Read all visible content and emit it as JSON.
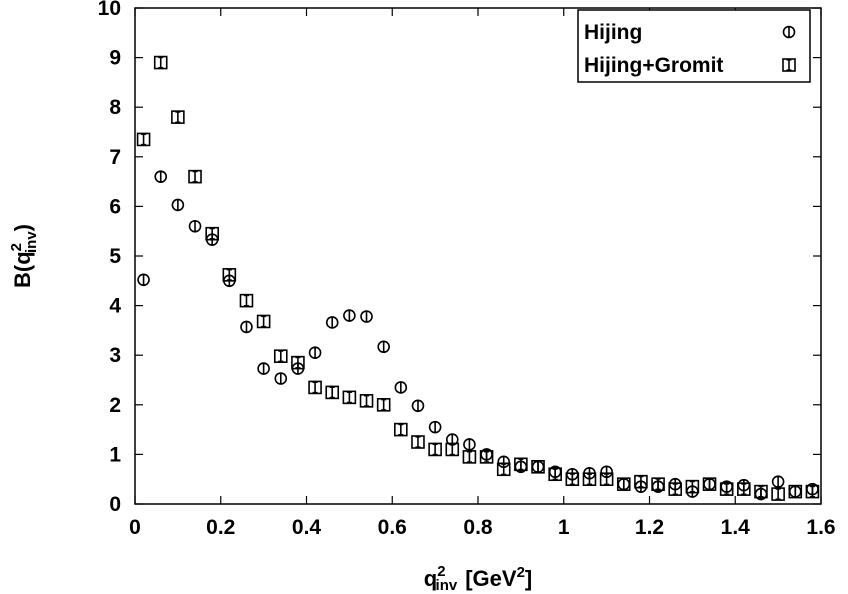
{
  "chart_data": {
    "type": "scatter",
    "xlabel": {
      "base": "q",
      "sup": "2",
      "sub": "inv",
      "rest": "[GeV",
      "rest_sup": "2",
      "rest_end": "]"
    },
    "ylabel": {
      "prefix": "B(q",
      "sup": "2",
      "sub": "inv",
      "suffix": ")"
    },
    "xlim": [
      0,
      1.6
    ],
    "ylim": [
      0,
      10
    ],
    "xticks": [
      0,
      0.2,
      0.4,
      0.6,
      0.8,
      1,
      1.2,
      1.4,
      1.6
    ],
    "xtick_labels": [
      "0",
      "0.2",
      "0.4",
      "0.6",
      "0.8",
      "1",
      "1.2",
      "1.4",
      "1.6"
    ],
    "yticks": [
      0,
      1,
      2,
      3,
      4,
      5,
      6,
      7,
      8,
      9,
      10
    ],
    "ytick_labels": [
      "0",
      "1",
      "2",
      "3",
      "4",
      "5",
      "6",
      "7",
      "8",
      "9",
      "10"
    ],
    "grid": false,
    "legend_position": "top-right",
    "series": [
      {
        "name": "Hijing",
        "marker": "circle",
        "x": [
          0.02,
          0.06,
          0.1,
          0.14,
          0.18,
          0.22,
          0.26,
          0.3,
          0.34,
          0.38,
          0.42,
          0.46,
          0.5,
          0.54,
          0.58,
          0.62,
          0.66,
          0.7,
          0.74,
          0.78,
          0.82,
          0.86,
          0.9,
          0.94,
          0.98,
          1.02,
          1.06,
          1.1,
          1.14,
          1.18,
          1.22,
          1.26,
          1.3,
          1.34,
          1.38,
          1.42,
          1.46,
          1.5,
          1.54,
          1.58
        ],
        "y": [
          4.52,
          6.6,
          6.03,
          5.6,
          5.33,
          4.5,
          3.57,
          2.73,
          2.53,
          2.73,
          3.05,
          3.66,
          3.8,
          3.78,
          3.17,
          2.35,
          1.98,
          1.55,
          1.3,
          1.2,
          1.0,
          0.85,
          0.75,
          0.75,
          0.65,
          0.6,
          0.62,
          0.65,
          0.4,
          0.35,
          0.35,
          0.4,
          0.25,
          0.4,
          0.35,
          0.38,
          0.2,
          0.45,
          0.25,
          0.3
        ]
      },
      {
        "name": "Hijing+Gromit",
        "marker": "square",
        "x": [
          0.02,
          0.06,
          0.1,
          0.14,
          0.18,
          0.22,
          0.26,
          0.3,
          0.34,
          0.38,
          0.42,
          0.46,
          0.5,
          0.54,
          0.58,
          0.62,
          0.66,
          0.7,
          0.74,
          0.78,
          0.82,
          0.86,
          0.9,
          0.94,
          0.98,
          1.02,
          1.06,
          1.1,
          1.14,
          1.18,
          1.22,
          1.26,
          1.3,
          1.34,
          1.38,
          1.42,
          1.46,
          1.5,
          1.54,
          1.58
        ],
        "y": [
          7.35,
          8.9,
          7.8,
          6.6,
          5.45,
          4.62,
          4.1,
          3.68,
          2.98,
          2.85,
          2.35,
          2.25,
          2.15,
          2.08,
          2.0,
          1.5,
          1.25,
          1.1,
          1.1,
          0.95,
          0.95,
          0.7,
          0.8,
          0.75,
          0.6,
          0.5,
          0.5,
          0.5,
          0.4,
          0.45,
          0.4,
          0.3,
          0.35,
          0.4,
          0.3,
          0.3,
          0.25,
          0.2,
          0.25,
          0.25
        ]
      }
    ]
  }
}
